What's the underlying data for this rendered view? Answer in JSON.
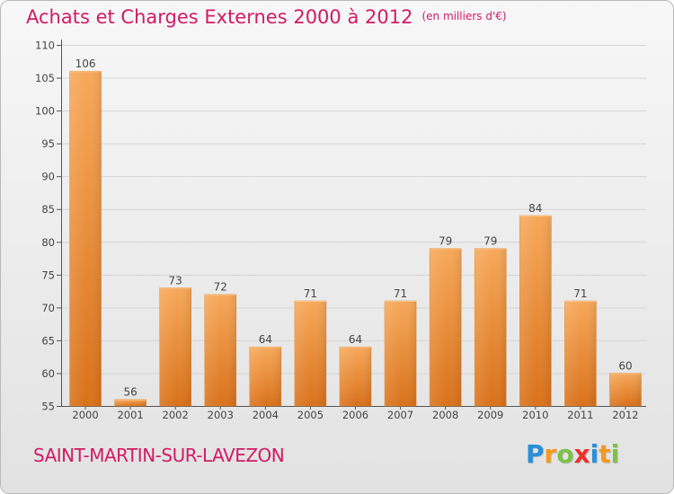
{
  "header": {
    "title": "Achats et Charges Externes 2000 à 2012",
    "subtitle": "(en milliers d'€)"
  },
  "footer": {
    "commune": "SAINT-MARTIN-SUR-LAVEZON",
    "logo_letters": [
      {
        "ch": "P",
        "color": "#2a8fd8"
      },
      {
        "ch": "r",
        "color": "#f39a1f"
      },
      {
        "ch": "o",
        "color": "#7cc24a"
      },
      {
        "ch": "x",
        "color": "#e8312f"
      },
      {
        "ch": "i",
        "color": "#2a8fd8"
      },
      {
        "ch": "t",
        "color": "#f39a1f"
      },
      {
        "ch": "i",
        "color": "#7cc24a"
      }
    ]
  },
  "colors": {
    "bar_light": "#f7a95a",
    "bar_dark": "#d9711a",
    "accent": "#d11b64"
  },
  "chart_data": {
    "type": "bar",
    "title": "Achats et Charges Externes 2000 à 2012",
    "subtitle": "(en milliers d'€)",
    "xlabel": "",
    "ylabel": "",
    "categories": [
      "2000",
      "2001",
      "2002",
      "2003",
      "2004",
      "2005",
      "2006",
      "2007",
      "2008",
      "2009",
      "2010",
      "2011",
      "2012"
    ],
    "values": [
      106,
      56,
      73,
      72,
      64,
      71,
      64,
      71,
      79,
      79,
      84,
      71,
      60
    ],
    "ylim": [
      55,
      110
    ],
    "yticks": [
      55,
      60,
      65,
      70,
      75,
      80,
      85,
      90,
      95,
      100,
      105,
      110
    ],
    "grid": true,
    "data_labels": true
  }
}
